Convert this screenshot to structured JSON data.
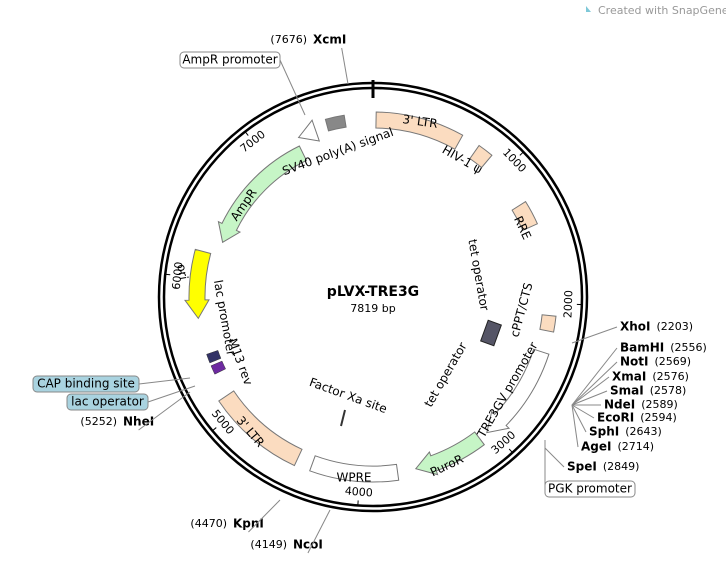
{
  "header": {
    "brand": "Created with SnapGene®"
  },
  "plasmid": {
    "name": "pLVX-TRE3G",
    "size": "7819 bp"
  },
  "ticks": [
    "1000",
    "2000",
    "3000",
    "4000",
    "5000",
    "6000",
    "7000"
  ],
  "features": [
    "3' LTR",
    "HIV-1 ψ",
    "RRE",
    "cPPT/CTS",
    "TRE3GV promoter",
    "PuroR",
    "WPRE",
    "3' LTR",
    "M13 rev",
    "lac promoter",
    "ori",
    "AmpR",
    "SV40 poly(A) signal",
    "tet operator",
    "tet operator",
    "Factor Xa site"
  ],
  "boxed_labels": [
    "AmpR promoter",
    "CAP binding site",
    "lac operator",
    "PGK promoter"
  ],
  "sites": [
    {
      "name": "XcmI",
      "position": "(7676)"
    },
    {
      "name": "XhoI",
      "position": "(2203)"
    },
    {
      "name": "BamHI",
      "position": "(2556)"
    },
    {
      "name": "NotI",
      "position": "(2569)"
    },
    {
      "name": "XmaI",
      "position": "(2576)"
    },
    {
      "name": "SmaI",
      "position": "(2578)"
    },
    {
      "name": "NdeI",
      "position": "(2589)"
    },
    {
      "name": "EcoRI",
      "position": "(2594)"
    },
    {
      "name": "SphI",
      "position": "(2643)"
    },
    {
      "name": "AgeI",
      "position": "(2714)"
    },
    {
      "name": "SpeI",
      "position": "(2849)"
    },
    {
      "name": "NheI",
      "position": "(5252)"
    },
    {
      "name": "KpnI",
      "position": "(4470)"
    },
    {
      "name": "NcoI",
      "position": "(4149)"
    }
  ]
}
